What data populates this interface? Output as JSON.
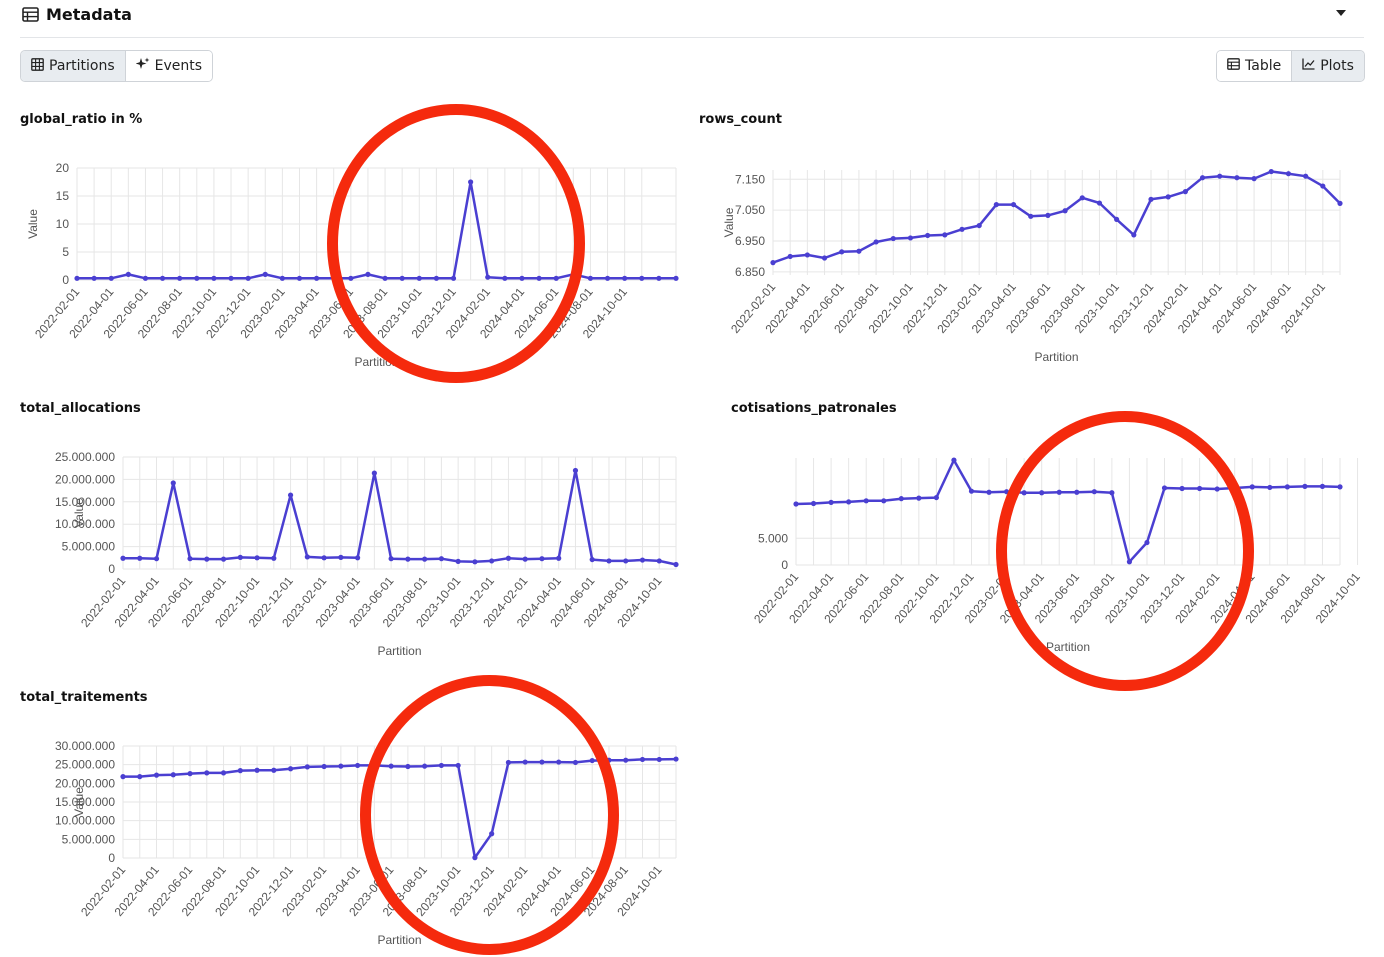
{
  "header": {
    "title": "Metadata",
    "icon": "table-icon",
    "collapse_icon": "caret-down-icon"
  },
  "view_tabs": [
    {
      "label": "Partitions",
      "icon": "grid-icon",
      "active": true
    },
    {
      "label": "Events",
      "icon": "sparkle-icon",
      "active": false
    }
  ],
  "display_tabs": [
    {
      "label": "Table",
      "icon": "table-icon",
      "active": false
    },
    {
      "label": "Plots",
      "icon": "line-chart-icon",
      "active": true
    }
  ],
  "colors": {
    "series": "#4a3fd1",
    "annotation": "#f52a0d",
    "grid": "#e6e6e6"
  },
  "chart_data": [
    {
      "type": "line",
      "title": "global_ratio in %",
      "xlabel": "Partition",
      "ylabel": "Value",
      "x_ticks": [
        "2022-02-01",
        "2022-04-01",
        "2022-06-01",
        "2022-08-01",
        "2022-10-01",
        "2022-12-01",
        "2023-02-01",
        "2023-04-01",
        "2023-06-01",
        "2023-08-01",
        "2023-10-01",
        "2023-12-01",
        "2024-02-01",
        "2024-04-01",
        "2024-06-01",
        "2024-08-01",
        "2024-10-01"
      ],
      "y_ticks": [
        "0",
        "5",
        "10",
        "15",
        "20"
      ],
      "ylim": [
        0,
        20
      ],
      "values": [
        0.3,
        0.3,
        0.3,
        1.0,
        0.3,
        0.3,
        0.3,
        0.3,
        0.3,
        0.3,
        0.3,
        1.0,
        0.3,
        0.3,
        0.3,
        0.3,
        0.3,
        1.0,
        0.3,
        0.3,
        0.3,
        0.3,
        0.3,
        17.5,
        0.5,
        0.3,
        0.3,
        0.3,
        0.3,
        1.0,
        0.3,
        0.3,
        0.3,
        0.3,
        0.3,
        0.3
      ]
    },
    {
      "type": "line",
      "title": "rows_count",
      "xlabel": "Partition",
      "ylabel": "Value",
      "x_ticks": [
        "2022-02-01",
        "2022-04-01",
        "2022-06-01",
        "2022-08-01",
        "2022-10-01",
        "2022-12-01",
        "2023-02-01",
        "2023-04-01",
        "2023-06-01",
        "2023-08-01",
        "2023-10-01",
        "2023-12-01",
        "2024-02-01",
        "2024-04-01",
        "2024-06-01",
        "2024-08-01",
        "2024-10-01"
      ],
      "y_ticks": [
        "6.850",
        "6.950",
        "7.050",
        "7.150"
      ],
      "ylim": [
        6840,
        7180
      ],
      "values": [
        6880,
        6900,
        6905,
        6895,
        6915,
        6917,
        6947,
        6958,
        6960,
        6968,
        6970,
        6988,
        7000,
        7068,
        7068,
        7030,
        7033,
        7048,
        7090,
        7073,
        7020,
        6970,
        7085,
        7093,
        7110,
        7155,
        7160,
        7155,
        7152,
        7175,
        7168,
        7160,
        7128,
        7072
      ]
    },
    {
      "type": "line",
      "title": "total_allocations",
      "xlabel": "Partition",
      "ylabel": "Value",
      "x_ticks": [
        "2022-02-01",
        "2022-04-01",
        "2022-06-01",
        "2022-08-01",
        "2022-10-01",
        "2022-12-01",
        "2023-02-01",
        "2023-04-01",
        "2023-06-01",
        "2023-08-01",
        "2023-10-01",
        "2023-12-01",
        "2024-02-01",
        "2024-04-01",
        "2024-06-01",
        "2024-08-01",
        "2024-10-01"
      ],
      "y_ticks": [
        "0",
        "5.000.000",
        "10.000.000",
        "15.000.000",
        "20.000.000",
        "25.000.000"
      ],
      "ylim": [
        0,
        25000000
      ],
      "values": [
        2400000,
        2400000,
        2300000,
        19200000,
        2300000,
        2200000,
        2200000,
        2600000,
        2500000,
        2400000,
        16500000,
        2700000,
        2500000,
        2600000,
        2500000,
        21400000,
        2300000,
        2200000,
        2200000,
        2300000,
        1700000,
        1600000,
        1800000,
        2400000,
        2200000,
        2300000,
        2400000,
        22000000,
        2100000,
        1800000,
        1800000,
        2000000,
        1800000,
        1000000
      ]
    },
    {
      "type": "line",
      "title": "cotisations_patronales",
      "xlabel": "Partition",
      "ylabel": "",
      "x_ticks": [
        "2022-02-01",
        "2022-04-01",
        "2022-06-01",
        "2022-08-01",
        "2022-10-01",
        "2022-12-01",
        "2023-02-01",
        "2023-04-01",
        "2023-06-01",
        "2023-08-01",
        "2023-10-01",
        "2023-12-01",
        "2024-02-01",
        "2024-04-01",
        "2024-06-01",
        "2024-08-01",
        "2024-10-01"
      ],
      "y_ticks": [
        "0",
        "5.000"
      ],
      "ylim": [
        0,
        20000
      ],
      "values": [
        11400,
        11500,
        11700,
        11800,
        12000,
        12000,
        12400,
        12500,
        12600,
        19600,
        13800,
        13600,
        13700,
        13500,
        13500,
        13600,
        13600,
        13700,
        13500,
        600,
        4200,
        14400,
        14300,
        14300,
        14200,
        14400,
        14600,
        14500,
        14600,
        14700,
        14700,
        14600
      ]
    },
    {
      "type": "line",
      "title": "total_traitements",
      "xlabel": "Partition",
      "ylabel": "Value",
      "x_ticks": [
        "2022-02-01",
        "2022-04-01",
        "2022-06-01",
        "2022-08-01",
        "2022-10-01",
        "2022-12-01",
        "2023-02-01",
        "2023-04-01",
        "2023-06-01",
        "2023-08-01",
        "2023-10-01",
        "2023-12-01",
        "2024-02-01",
        "2024-04-01",
        "2024-06-01",
        "2024-08-01",
        "2024-10-01"
      ],
      "y_ticks": [
        "0",
        "5.000.000",
        "10.000.000",
        "15.000.000",
        "20.000.000",
        "25.000.000",
        "30.000.000"
      ],
      "ylim": [
        0,
        30000000
      ],
      "values": [
        21800000,
        21800000,
        22200000,
        22300000,
        22600000,
        22800000,
        22800000,
        23400000,
        23500000,
        23500000,
        23900000,
        24400000,
        24500000,
        24600000,
        24800000,
        24800000,
        24600000,
        24500000,
        24600000,
        24800000,
        24800000,
        100000,
        6500000,
        25600000,
        25700000,
        25700000,
        25700000,
        25600000,
        26100000,
        26200000,
        26200000,
        26400000,
        26400000,
        26500000
      ]
    }
  ]
}
